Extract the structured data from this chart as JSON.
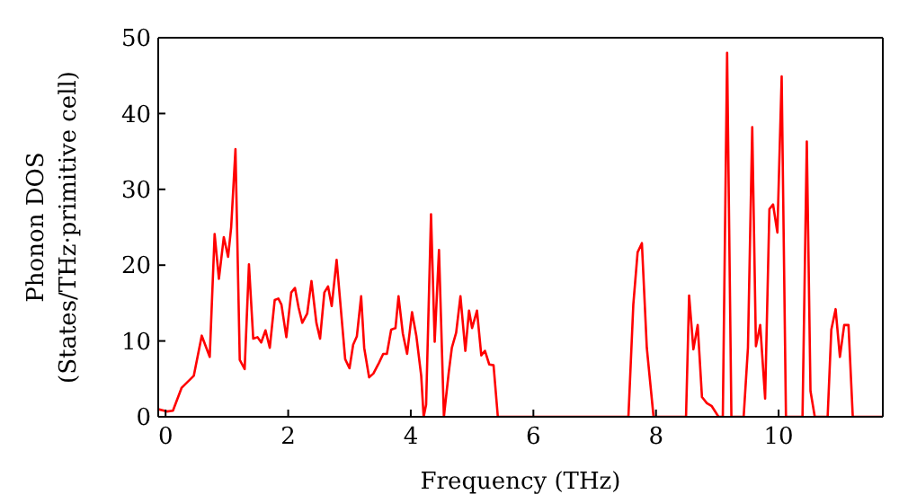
{
  "chart_data": {
    "type": "line",
    "xlabel": "Frequency (THz)",
    "ylabel": "Phonon DOS\n(States/THz·primitive cell)",
    "xlim": [
      -0.12,
      11.7
    ],
    "ylim": [
      0,
      50
    ],
    "xticks": [
      0,
      2,
      4,
      6,
      8,
      10
    ],
    "yticks": [
      0,
      10,
      20,
      30,
      40,
      50
    ],
    "marker": "none",
    "line_style": "solid",
    "series": [
      {
        "color": "#ff0000",
        "x": [
          -0.12,
          0.02,
          0.12,
          0.26,
          0.36,
          0.46,
          0.59,
          0.72,
          0.8,
          0.87,
          0.95,
          1.02,
          1.07,
          1.14,
          1.21,
          1.29,
          1.36,
          1.43,
          1.5,
          1.56,
          1.63,
          1.7,
          1.78,
          1.84,
          1.89,
          1.97,
          2.05,
          2.11,
          2.17,
          2.23,
          2.31,
          2.38,
          2.46,
          2.52,
          2.59,
          2.65,
          2.71,
          2.79,
          2.87,
          2.93,
          3.0,
          3.06,
          3.12,
          3.19,
          3.24,
          3.32,
          3.39,
          3.48,
          3.55,
          3.61,
          3.68,
          3.75,
          3.8,
          3.87,
          3.94,
          4.02,
          4.09,
          4.17,
          4.21,
          4.25,
          4.33,
          4.39,
          4.46,
          4.54,
          4.62,
          4.67,
          4.74,
          4.81,
          4.89,
          4.95,
          5.0,
          5.08,
          5.15,
          5.21,
          5.28,
          5.35,
          5.42,
          7.55,
          7.63,
          7.7,
          7.77,
          7.85,
          7.96,
          8.49,
          8.54,
          8.61,
          8.68,
          8.75,
          8.83,
          8.91,
          9.02,
          9.09,
          9.16,
          9.23,
          9.43,
          9.5,
          9.57,
          9.63,
          9.7,
          9.78,
          9.85,
          9.91,
          9.98,
          10.05,
          10.12,
          10.39,
          10.46,
          10.52,
          10.59,
          10.8,
          10.86,
          10.93,
          11.0,
          11.07,
          11.14,
          11.21,
          11.7
        ],
        "values": [
          1.0,
          0.7,
          0.8,
          3.8,
          4.6,
          5.4,
          10.7,
          7.9,
          24.1,
          18.2,
          23.7,
          21.1,
          25,
          35.3,
          7.5,
          6.3,
          20.1,
          10.3,
          10.5,
          9.8,
          11.4,
          9.1,
          15.4,
          15.6,
          14.8,
          10.5,
          16.4,
          17,
          14.4,
          12.4,
          13.6,
          17.9,
          12.4,
          10.3,
          16.4,
          17.2,
          14.6,
          20.7,
          13.2,
          7.6,
          6.4,
          9.5,
          10.6,
          15.9,
          9.1,
          5.2,
          5.7,
          7.1,
          8.3,
          8.3,
          11.5,
          11.7,
          15.9,
          11.0,
          8.3,
          13.8,
          10.7,
          5.4,
          0,
          1.6,
          26.7,
          9.9,
          22,
          0,
          5.9,
          9.1,
          11.1,
          15.9,
          8.7,
          14,
          11.7,
          14,
          8.1,
          8.7,
          6.9,
          6.8,
          0,
          0,
          14.8,
          21.7,
          22.9,
          9.1,
          0,
          0,
          16,
          8.9,
          12.1,
          2.6,
          1.8,
          1.4,
          0,
          0,
          48,
          0,
          0,
          9.1,
          38.2,
          9.3,
          12.1,
          2.4,
          27.4,
          28,
          24.3,
          44.9,
          0,
          0,
          36.3,
          3.4,
          0,
          0,
          11.5,
          14.2,
          7.9,
          12.1,
          12.1,
          0,
          0
        ]
      }
    ]
  }
}
